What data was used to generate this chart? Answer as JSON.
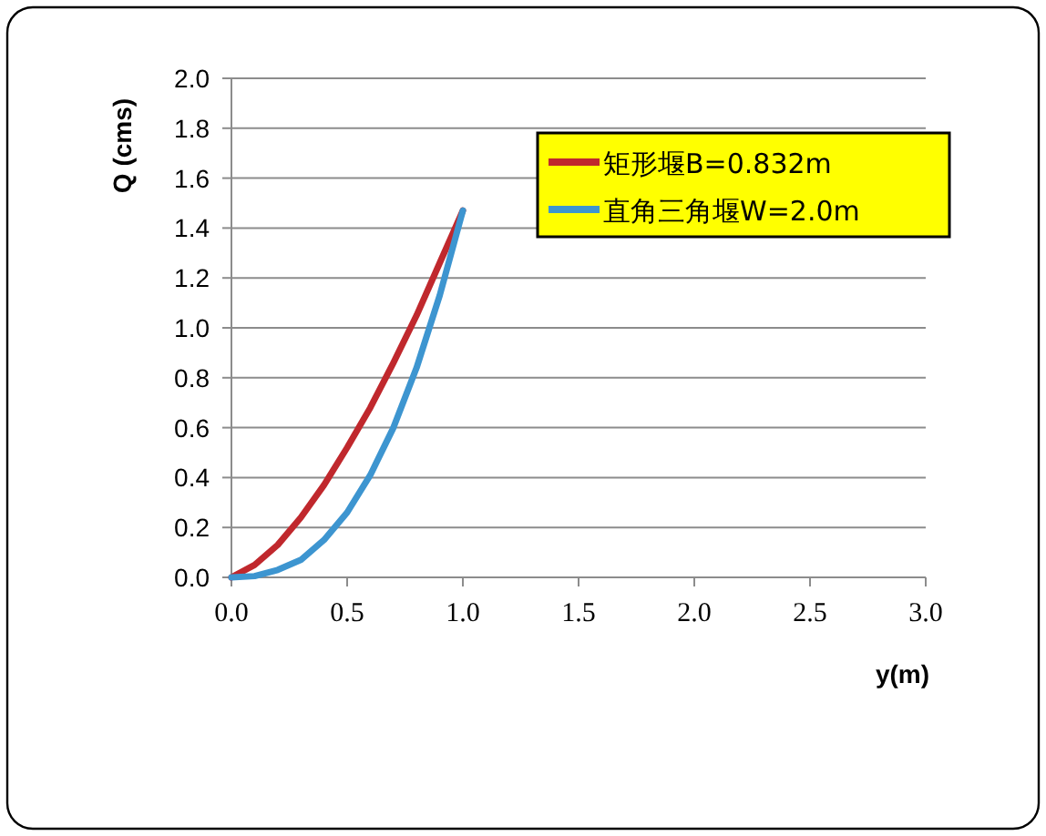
{
  "chart_data": {
    "type": "line",
    "xlabel": "y(m)",
    "ylabel": "Q (cms)",
    "x": [
      0,
      0.1,
      0.2,
      0.3,
      0.4,
      0.5,
      0.6,
      0.7,
      0.8,
      0.9,
      1.0
    ],
    "series": [
      {
        "name": "矩形堰B=0.832m",
        "color": "#c0282d",
        "values": [
          0,
          0.05,
          0.13,
          0.24,
          0.37,
          0.52,
          0.68,
          0.86,
          1.05,
          1.26,
          1.47
        ]
      },
      {
        "name": "直角三角堰W=2.0m",
        "color": "#3d95d0",
        "values": [
          0,
          0.005,
          0.03,
          0.07,
          0.15,
          0.26,
          0.41,
          0.6,
          0.84,
          1.13,
          1.47
        ]
      }
    ],
    "xlim": [
      0,
      3
    ],
    "ylim": [
      0,
      2
    ],
    "xticks": [
      {
        "value": 0,
        "label": "0.0"
      },
      {
        "value": 0.5,
        "label": "0.5"
      },
      {
        "value": 1,
        "label": "1.0"
      },
      {
        "value": 1.5,
        "label": "1.5"
      },
      {
        "value": 2,
        "label": "2.0"
      },
      {
        "value": 2.5,
        "label": "2.5"
      },
      {
        "value": 3,
        "label": "3.0"
      }
    ],
    "yticks": [
      {
        "value": 0,
        "label": "0.0"
      },
      {
        "value": 0.2,
        "label": "0.2"
      },
      {
        "value": 0.4,
        "label": "0.4"
      },
      {
        "value": 0.6,
        "label": "0.6"
      },
      {
        "value": 0.8,
        "label": "0.8"
      },
      {
        "value": 1,
        "label": "1.0"
      },
      {
        "value": 1.2,
        "label": "1.2"
      },
      {
        "value": 1.4,
        "label": "1.4"
      },
      {
        "value": 1.6,
        "label": "1.6"
      },
      {
        "value": 1.8,
        "label": "1.8"
      },
      {
        "value": 2,
        "label": "2.0"
      }
    ],
    "grid": "y",
    "legend": "top right"
  }
}
